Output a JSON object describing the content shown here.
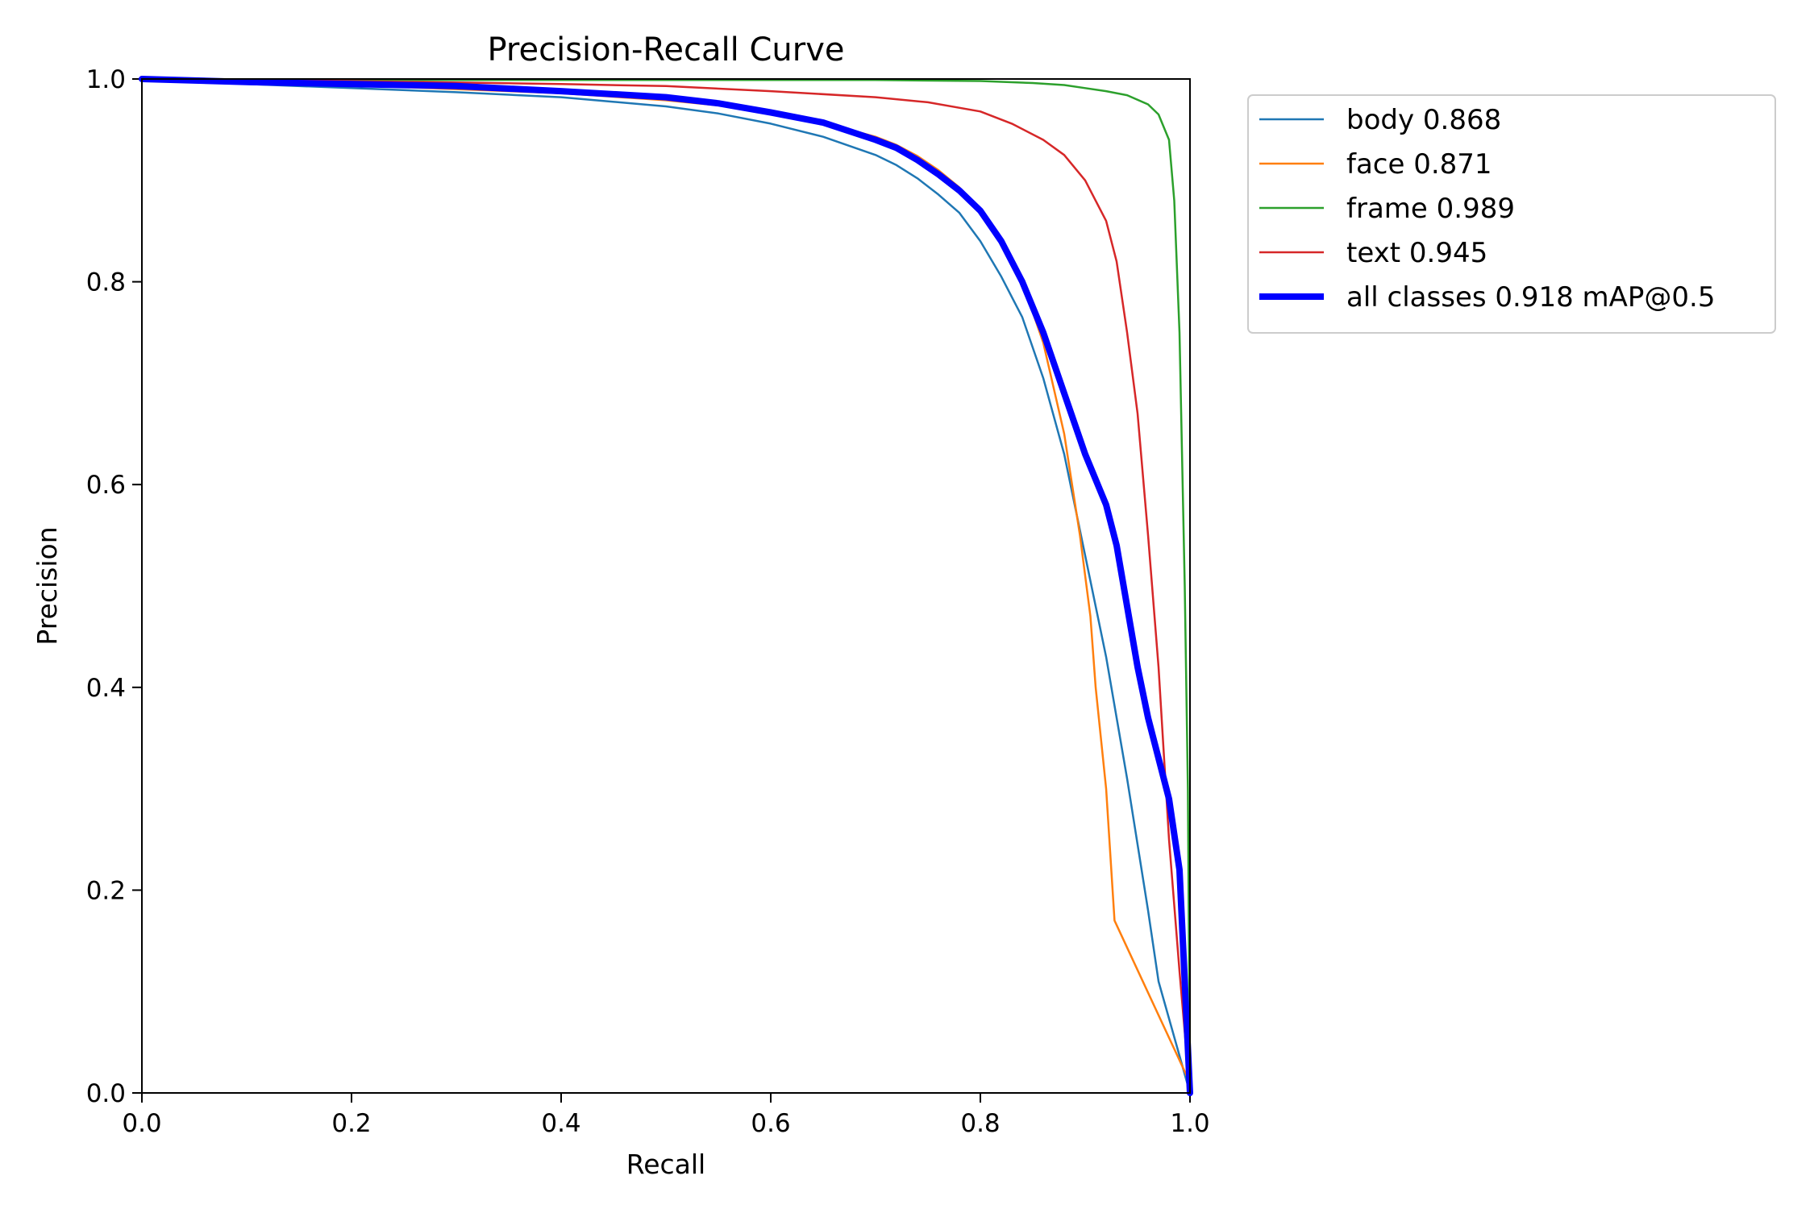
{
  "chart_data": {
    "type": "line",
    "title": "Precision-Recall Curve",
    "xlabel": "Recall",
    "ylabel": "Precision",
    "xlim": [
      0.0,
      1.0
    ],
    "ylim": [
      0.0,
      1.0
    ],
    "xticks": [
      "0.0",
      "0.2",
      "0.4",
      "0.6",
      "0.8",
      "1.0"
    ],
    "yticks": [
      "0.0",
      "0.2",
      "0.4",
      "0.6",
      "0.8",
      "1.0"
    ],
    "grid": false,
    "legend_position": "outside-top-right",
    "series": [
      {
        "name": "body 0.868",
        "color": "#1f77b4",
        "bold": false,
        "points": [
          [
            0,
            1.0
          ],
          [
            0.1,
            0.995
          ],
          [
            0.2,
            0.991
          ],
          [
            0.3,
            0.987
          ],
          [
            0.4,
            0.982
          ],
          [
            0.5,
            0.973
          ],
          [
            0.55,
            0.966
          ],
          [
            0.6,
            0.956
          ],
          [
            0.65,
            0.943
          ],
          [
            0.7,
            0.925
          ],
          [
            0.72,
            0.915
          ],
          [
            0.74,
            0.902
          ],
          [
            0.76,
            0.886
          ],
          [
            0.78,
            0.868
          ],
          [
            0.8,
            0.84
          ],
          [
            0.82,
            0.805
          ],
          [
            0.84,
            0.765
          ],
          [
            0.86,
            0.705
          ],
          [
            0.88,
            0.63
          ],
          [
            0.9,
            0.53
          ],
          [
            0.92,
            0.43
          ],
          [
            0.94,
            0.31
          ],
          [
            0.96,
            0.18
          ],
          [
            0.97,
            0.11
          ],
          [
            1.0,
            0.0
          ]
        ]
      },
      {
        "name": "face 0.871",
        "color": "#ff7f0e",
        "bold": false,
        "points": [
          [
            0,
            1.0
          ],
          [
            0.1,
            0.997
          ],
          [
            0.2,
            0.994
          ],
          [
            0.3,
            0.99
          ],
          [
            0.4,
            0.986
          ],
          [
            0.5,
            0.979
          ],
          [
            0.55,
            0.974
          ],
          [
            0.6,
            0.966
          ],
          [
            0.65,
            0.957
          ],
          [
            0.7,
            0.943
          ],
          [
            0.72,
            0.935
          ],
          [
            0.74,
            0.924
          ],
          [
            0.76,
            0.91
          ],
          [
            0.78,
            0.893
          ],
          [
            0.8,
            0.87
          ],
          [
            0.82,
            0.84
          ],
          [
            0.84,
            0.8
          ],
          [
            0.86,
            0.74
          ],
          [
            0.88,
            0.65
          ],
          [
            0.895,
            0.55
          ],
          [
            0.905,
            0.47
          ],
          [
            0.91,
            0.4
          ],
          [
            0.92,
            0.3
          ],
          [
            0.928,
            0.17
          ],
          [
            1.0,
            0.01
          ]
        ]
      },
      {
        "name": "frame 0.989",
        "color": "#2ca02c",
        "bold": false,
        "points": [
          [
            0,
            1.0
          ],
          [
            0.3,
            0.999
          ],
          [
            0.5,
            0.999
          ],
          [
            0.7,
            0.999
          ],
          [
            0.8,
            0.998
          ],
          [
            0.85,
            0.996
          ],
          [
            0.88,
            0.994
          ],
          [
            0.9,
            0.991
          ],
          [
            0.92,
            0.988
          ],
          [
            0.94,
            0.984
          ],
          [
            0.96,
            0.975
          ],
          [
            0.97,
            0.965
          ],
          [
            0.98,
            0.94
          ],
          [
            0.985,
            0.88
          ],
          [
            0.99,
            0.75
          ],
          [
            0.995,
            0.5
          ],
          [
            0.998,
            0.3
          ],
          [
            1.0,
            0.0
          ]
        ]
      },
      {
        "name": "text 0.945",
        "color": "#d62728",
        "bold": false,
        "points": [
          [
            0,
            1.0
          ],
          [
            0.2,
            0.998
          ],
          [
            0.4,
            0.995
          ],
          [
            0.5,
            0.993
          ],
          [
            0.6,
            0.988
          ],
          [
            0.7,
            0.982
          ],
          [
            0.75,
            0.977
          ],
          [
            0.8,
            0.968
          ],
          [
            0.83,
            0.956
          ],
          [
            0.86,
            0.94
          ],
          [
            0.88,
            0.925
          ],
          [
            0.9,
            0.9
          ],
          [
            0.92,
            0.86
          ],
          [
            0.93,
            0.82
          ],
          [
            0.94,
            0.75
          ],
          [
            0.95,
            0.67
          ],
          [
            0.96,
            0.55
          ],
          [
            0.97,
            0.42
          ],
          [
            0.98,
            0.25
          ],
          [
            0.99,
            0.12
          ],
          [
            1.0,
            0.0
          ]
        ]
      },
      {
        "name": "all classes 0.918 mAP@0.5",
        "color": "#0000ff",
        "bold": true,
        "points": [
          [
            0,
            1.0
          ],
          [
            0.1,
            0.997
          ],
          [
            0.2,
            0.995
          ],
          [
            0.3,
            0.993
          ],
          [
            0.4,
            0.988
          ],
          [
            0.5,
            0.982
          ],
          [
            0.55,
            0.976
          ],
          [
            0.6,
            0.967
          ],
          [
            0.65,
            0.957
          ],
          [
            0.7,
            0.94
          ],
          [
            0.72,
            0.932
          ],
          [
            0.74,
            0.92
          ],
          [
            0.76,
            0.906
          ],
          [
            0.78,
            0.89
          ],
          [
            0.8,
            0.87
          ],
          [
            0.82,
            0.84
          ],
          [
            0.84,
            0.8
          ],
          [
            0.86,
            0.75
          ],
          [
            0.88,
            0.69
          ],
          [
            0.9,
            0.63
          ],
          [
            0.92,
            0.58
          ],
          [
            0.93,
            0.54
          ],
          [
            0.94,
            0.48
          ],
          [
            0.95,
            0.42
          ],
          [
            0.96,
            0.37
          ],
          [
            0.97,
            0.33
          ],
          [
            0.98,
            0.29
          ],
          [
            0.99,
            0.22
          ],
          [
            1.0,
            0.0
          ]
        ]
      }
    ]
  }
}
